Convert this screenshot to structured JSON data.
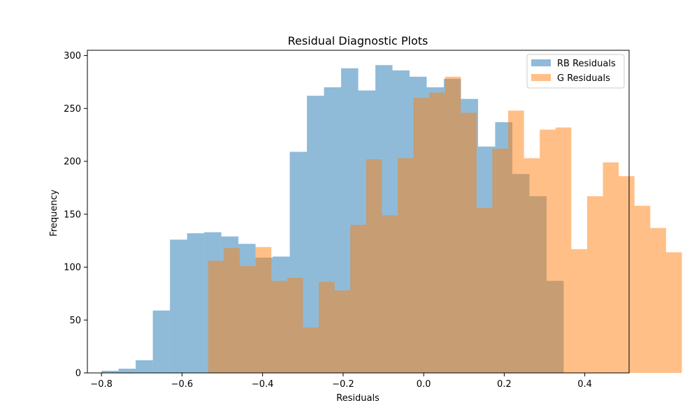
{
  "chart_data": {
    "type": "bar",
    "title": "Residual Diagnostic Plots",
    "xlabel": "Residuals",
    "ylabel": "Frequency",
    "xlim": [
      -0.835,
      0.51
    ],
    "ylim": [
      0,
      305
    ],
    "xticks": [
      -0.8,
      -0.6,
      -0.4,
      -0.2,
      0.0,
      0.2,
      0.4
    ],
    "xtick_labels": [
      "−0.8",
      "−0.6",
      "−0.4",
      "−0.2",
      "0.0",
      "0.2",
      "0.4"
    ],
    "yticks": [
      0,
      50,
      100,
      150,
      200,
      250,
      300
    ],
    "ytick_labels": [
      "0",
      "50",
      "100",
      "150",
      "200",
      "250",
      "300"
    ],
    "legend_position": "top-right",
    "colors": {
      "rb": "#1f77b4",
      "g": "#ff7f0e"
    },
    "alpha": 0.5,
    "series": [
      {
        "name": "RB Residuals",
        "bin_start": -0.8,
        "bin_width": 0.0425,
        "values": [
          2,
          4,
          12,
          59,
          126,
          132,
          133,
          129,
          122,
          109,
          110,
          209,
          262,
          270,
          288,
          267,
          291,
          286,
          280,
          270,
          278,
          259,
          214,
          237,
          188,
          167,
          87
        ]
      },
      {
        "name": "G Residuals",
        "bin_start": -0.535,
        "bin_width": 0.0392,
        "values": [
          106,
          118,
          101,
          119,
          87,
          90,
          43,
          86,
          78,
          140,
          202,
          149,
          203,
          260,
          265,
          280,
          246,
          156,
          212,
          248,
          203,
          230,
          232,
          117,
          167,
          199,
          186,
          158,
          137,
          114
        ]
      }
    ]
  }
}
